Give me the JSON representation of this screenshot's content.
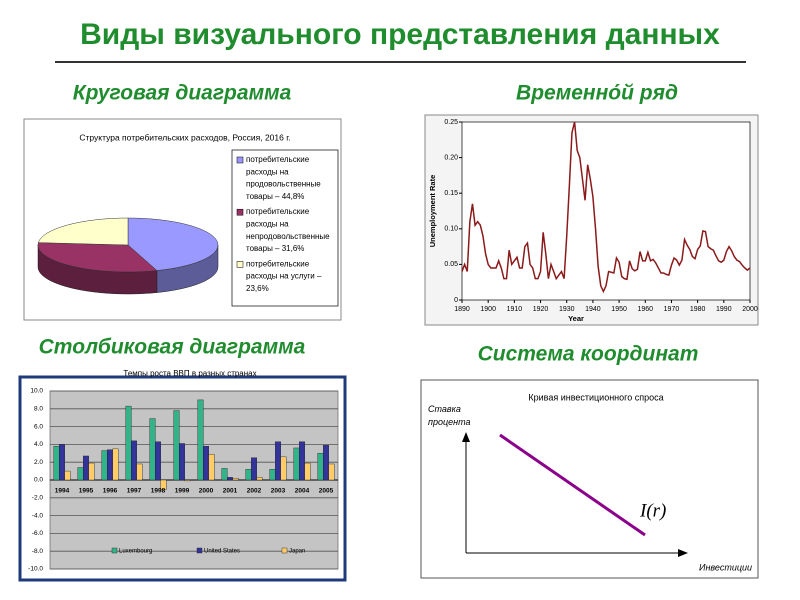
{
  "header": {
    "title": "Виды визуального представления данных"
  },
  "sections": [
    {
      "heading": "Круговая диаграмма"
    },
    {
      "heading": "Временно́й ряд"
    },
    {
      "heading": "Столбиковая диаграмма"
    },
    {
      "heading": "Система координат"
    }
  ],
  "chart_data": [
    {
      "type": "pie",
      "title": "Структура потребительских расходов, Россия, 2016 г.",
      "categories": [
        "потребительские расходы на продовольственные товары – 44,8%",
        "потребительские расходы на непродовольственные товары – 31,6%",
        "потребительские расходы на услуги – 23,6%"
      ],
      "values": [
        44.8,
        31.6,
        23.6
      ],
      "colors": [
        "#9999ff",
        "#993366",
        "#ffffcc"
      ]
    },
    {
      "type": "line",
      "xlabel": "Year",
      "ylabel": "Unemployment Rate",
      "x": [
        1890,
        1891,
        1892,
        1893,
        1894,
        1895,
        1896,
        1897,
        1898,
        1899,
        1900,
        1901,
        1902,
        1903,
        1904,
        1905,
        1906,
        1907,
        1908,
        1909,
        1910,
        1911,
        1912,
        1913,
        1914,
        1915,
        1916,
        1917,
        1918,
        1919,
        1920,
        1921,
        1922,
        1923,
        1924,
        1925,
        1926,
        1927,
        1928,
        1929,
        1930,
        1931,
        1932,
        1933,
        1934,
        1935,
        1936,
        1937,
        1938,
        1939,
        1940,
        1941,
        1942,
        1943,
        1944,
        1945,
        1946,
        1947,
        1948,
        1949,
        1950,
        1951,
        1952,
        1953,
        1954,
        1955,
        1956,
        1957,
        1958,
        1959,
        1960,
        1961,
        1962,
        1963,
        1964,
        1965,
        1966,
        1967,
        1968,
        1969,
        1970,
        1971,
        1972,
        1973,
        1974,
        1975,
        1976,
        1977,
        1978,
        1979,
        1980,
        1981,
        1982,
        1983,
        1984,
        1985,
        1986,
        1987,
        1988,
        1989,
        1990,
        1991,
        1992,
        1993,
        1994,
        1995,
        1996,
        1997,
        1998,
        1999,
        2000
      ],
      "series": [
        {
          "name": "Unemployment Rate",
          "color": "#8b1a1a",
          "values": [
            0.04,
            0.05,
            0.04,
            0.11,
            0.135,
            0.105,
            0.11,
            0.105,
            0.09,
            0.065,
            0.05,
            0.045,
            0.045,
            0.045,
            0.055,
            0.045,
            0.03,
            0.03,
            0.07,
            0.05,
            0.055,
            0.06,
            0.045,
            0.045,
            0.075,
            0.08,
            0.05,
            0.045,
            0.03,
            0.03,
            0.04,
            0.095,
            0.065,
            0.03,
            0.05,
            0.04,
            0.03,
            0.035,
            0.04,
            0.03,
            0.09,
            0.16,
            0.235,
            0.25,
            0.21,
            0.2,
            0.17,
            0.14,
            0.19,
            0.17,
            0.145,
            0.1,
            0.047,
            0.02,
            0.012,
            0.02,
            0.04,
            0.039,
            0.038,
            0.059,
            0.053,
            0.033,
            0.03,
            0.029,
            0.055,
            0.044,
            0.041,
            0.043,
            0.068,
            0.055,
            0.055,
            0.067,
            0.055,
            0.057,
            0.052,
            0.045,
            0.038,
            0.038,
            0.036,
            0.035,
            0.049,
            0.059,
            0.056,
            0.049,
            0.056,
            0.085,
            0.077,
            0.071,
            0.061,
            0.058,
            0.071,
            0.076,
            0.097,
            0.096,
            0.075,
            0.072,
            0.07,
            0.062,
            0.055,
            0.053,
            0.056,
            0.068,
            0.075,
            0.069,
            0.061,
            0.056,
            0.054,
            0.049,
            0.045,
            0.042,
            0.045
          ]
        }
      ],
      "xlim": [
        1890,
        2000
      ],
      "xticks": [
        1890,
        1900,
        1910,
        1920,
        1930,
        1940,
        1950,
        1960,
        1970,
        1980,
        1990,
        2000
      ],
      "ylim": [
        0,
        0.25
      ],
      "yticks": [
        0,
        0.05,
        {
          "value": 0.1,
          "label": "0.10"
        },
        0.15,
        {
          "value": 0.2,
          "label": "0.20"
        },
        0.25
      ],
      "grid": false
    },
    {
      "type": "bar",
      "title": "Темпы роста ВВП в разных странах",
      "categories": [
        "1994",
        "1995",
        "1996",
        "1997",
        "1998",
        "1999",
        "2000",
        "2001",
        "2002",
        "2003",
        "2004",
        "2005"
      ],
      "series": [
        {
          "name": "Luxembourg",
          "color": "#33b38a",
          "values": [
            3.8,
            1.4,
            3.3,
            8.3,
            6.9,
            7.8,
            9.0,
            1.3,
            1.2,
            1.2,
            3.6,
            3.0
          ]
        },
        {
          "name": "United States",
          "color": "#333399",
          "values": [
            4.0,
            2.7,
            3.4,
            4.4,
            4.3,
            4.1,
            3.8,
            0.3,
            2.5,
            4.3,
            4.3,
            3.9
          ]
        },
        {
          "name": "Japan",
          "color": "#ffcc66",
          "values": [
            1.0,
            1.9,
            3.5,
            1.8,
            -1.1,
            -0.1,
            2.9,
            0.2,
            0.3,
            2.6,
            1.9,
            1.8
          ]
        }
      ],
      "ylim": [
        -10,
        10
      ],
      "yticks": [
        {
          "value": -10,
          "label": "-10.0"
        },
        {
          "value": -8,
          "label": "-8.0"
        },
        {
          "value": -6,
          "label": "-6.0"
        },
        {
          "value": -4,
          "label": "-4.0"
        },
        {
          "value": -2,
          "label": "-2.0"
        },
        {
          "value": 0,
          "label": "0.0"
        },
        {
          "value": 2,
          "label": "2.0"
        },
        {
          "value": 4,
          "label": "4.0"
        },
        {
          "value": 6,
          "label": "6.0"
        },
        {
          "value": 8,
          "label": "8.0"
        },
        {
          "value": 10,
          "label": "10.0"
        }
      ],
      "grid": true
    }
  ],
  "diagram": {
    "title": "Кривая инвестиционного спроса",
    "y_label": "Ставка процента",
    "x_label": "Инвестиции",
    "curve_label": "I(r)"
  }
}
